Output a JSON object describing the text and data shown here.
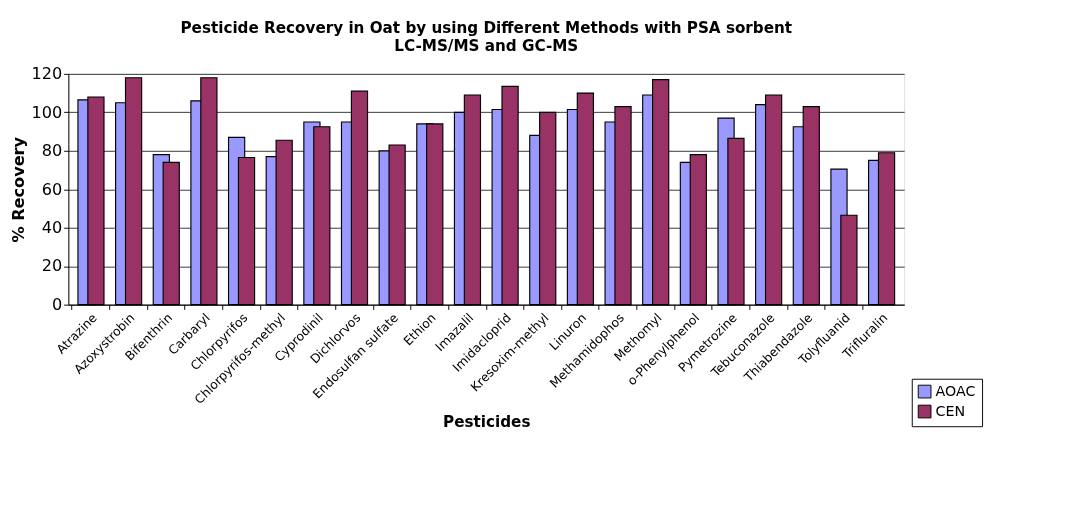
{
  "chart_data": {
    "type": "bar",
    "title": "Pesticide Recovery in Oat by using Different Methods with PSA sorbent",
    "subtitle": "LC-MS/MS and GC-MS",
    "xlabel": "Pesticides",
    "ylabel": "% Recovery",
    "categories": [
      "Atrazine",
      "Azoxystrobin",
      "Bifenthrin",
      "Carbaryl",
      "Chlorpyrifos",
      "Chlorpyrifos-methyl",
      "Cyprodinil",
      "Dichlorvos",
      "Endosulfan sulfate",
      "Ethion",
      "Imazalil",
      "Imidacloprid",
      "Kresoxim-methyl",
      "Linuron",
      "Methamidophos",
      "Methomyl",
      "o-Phenylphenol",
      "Pymetrozine",
      "Tebuconazole",
      "Thiabendazole",
      "Tolyfluanid",
      "Trifluralin"
    ],
    "series": [
      {
        "name": "AOAC",
        "color": "#9999ff",
        "values": [
          106.5,
          105,
          78,
          106,
          87,
          77,
          95,
          95,
          80,
          94,
          100,
          101.5,
          88,
          101.5,
          95,
          109,
          74,
          97,
          104,
          92.5,
          70.5,
          75
        ]
      },
      {
        "name": "CEN",
        "color": "#993366",
        "values": [
          108,
          118,
          74,
          118,
          76.5,
          85.5,
          92.5,
          111,
          83,
          94,
          109,
          113.5,
          100,
          110,
          103,
          117,
          78,
          86.5,
          109,
          103,
          46.5,
          79
        ]
      }
    ],
    "ylim": [
      0,
      120
    ],
    "yticks": [
      0,
      20,
      40,
      60,
      80,
      100,
      120
    ],
    "grid": "y",
    "legend": "bottom right"
  }
}
